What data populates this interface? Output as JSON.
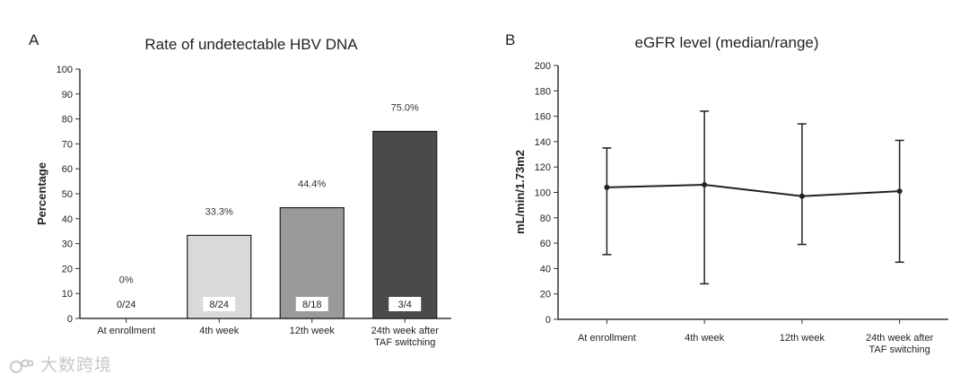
{
  "watermark": {
    "text": "大数跨境"
  },
  "chart_data": [
    {
      "panel": "A",
      "type": "bar",
      "title": "Rate of undetectable HBV DNA",
      "xlabel": "",
      "ylabel": "Percentage",
      "ylim": [
        0,
        100
      ],
      "yticks": [
        0,
        10,
        20,
        30,
        40,
        50,
        60,
        70,
        80,
        90,
        100
      ],
      "categories": [
        [
          "At enrollment"
        ],
        [
          "4th week"
        ],
        [
          "12th week"
        ],
        [
          "24th week after",
          "TAF switching"
        ]
      ],
      "values": [
        0,
        33.3,
        44.4,
        75.0
      ],
      "value_labels": [
        "0%",
        "33.3%",
        "44.4%",
        "75.0%"
      ],
      "count_labels": [
        "0/24",
        "8/24",
        "8/18",
        "3/4"
      ],
      "bar_colors": [
        "#ffffff",
        "#d9d9d9",
        "#9a9a9a",
        "#4a4a4a"
      ],
      "grid": false
    },
    {
      "panel": "B",
      "type": "line",
      "title": "eGFR level (median/range)",
      "xlabel": "",
      "ylabel": "mL/min/1.73m2",
      "ylim": [
        0,
        200
      ],
      "yticks": [
        0,
        20,
        40,
        60,
        80,
        100,
        120,
        140,
        160,
        180,
        200
      ],
      "categories": [
        [
          "At enrollment"
        ],
        [
          "4th week"
        ],
        [
          "12th week"
        ],
        [
          "24th week after",
          "TAF switching"
        ]
      ],
      "median": [
        104,
        106,
        97,
        101
      ],
      "min": [
        51,
        28,
        59,
        45
      ],
      "max": [
        135,
        164,
        154,
        141
      ],
      "grid": false
    }
  ]
}
